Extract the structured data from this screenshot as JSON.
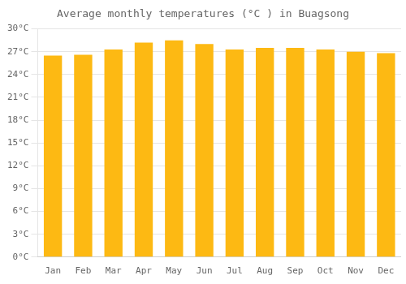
{
  "chart_data": {
    "type": "bar",
    "title": "Average monthly temperatures (°C ) in Buagsong",
    "categories": [
      "Jan",
      "Feb",
      "Mar",
      "Apr",
      "May",
      "Jun",
      "Jul",
      "Aug",
      "Sep",
      "Oct",
      "Nov",
      "Dec"
    ],
    "values": [
      26.5,
      26.6,
      27.3,
      28.2,
      28.5,
      28.0,
      27.3,
      27.5,
      27.5,
      27.3,
      27.0,
      26.8
    ],
    "color": "#FDB913",
    "ylim": [
      0,
      30
    ],
    "yticks": [
      {
        "value": 0,
        "label": "0°C"
      },
      {
        "value": 3,
        "label": "3°C"
      },
      {
        "value": 6,
        "label": "6°C"
      },
      {
        "value": 9,
        "label": "9°C"
      },
      {
        "value": 12,
        "label": "12°C"
      },
      {
        "value": 15,
        "label": "15°C"
      },
      {
        "value": 18,
        "label": "18°C"
      },
      {
        "value": 21,
        "label": "21°C"
      },
      {
        "value": 24,
        "label": "24°C"
      },
      {
        "value": 27,
        "label": "27°C"
      },
      {
        "value": 30,
        "label": "30°C"
      }
    ],
    "grid": true
  }
}
